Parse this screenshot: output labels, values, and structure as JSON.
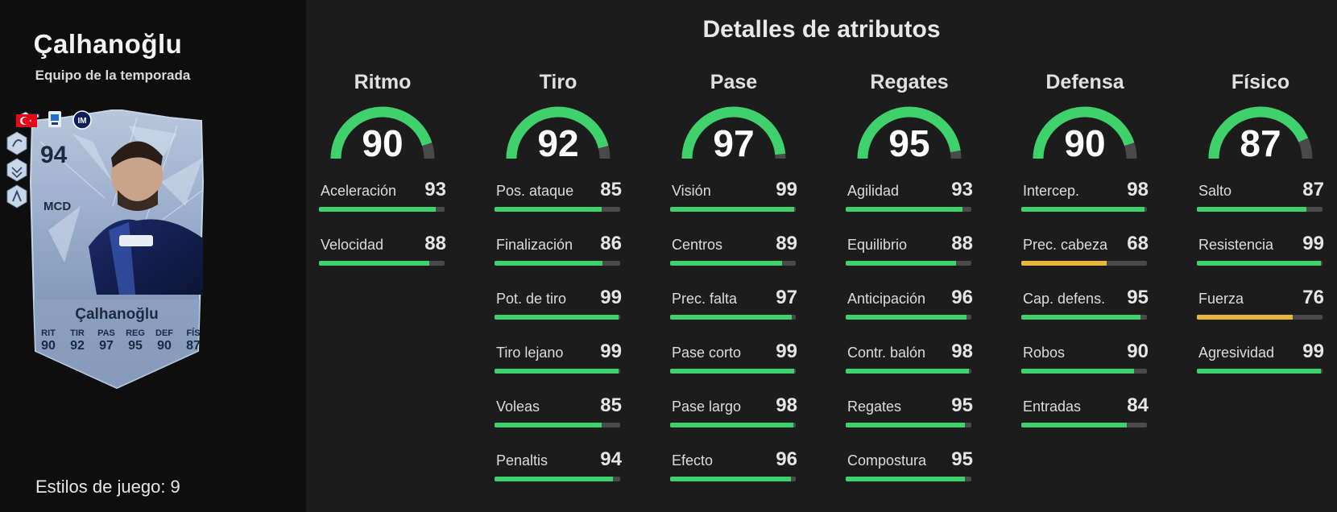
{
  "player": {
    "name": "Çalhanoğlu",
    "subtitle": "Equipo de la temporada",
    "playstyles": "Estilos de juego: 9"
  },
  "card": {
    "rating": "94",
    "position": "MCD",
    "name": "Çalhanoğlu",
    "stats": [
      {
        "label": "RIT",
        "value": "90"
      },
      {
        "label": "TIR",
        "value": "92"
      },
      {
        "label": "PAS",
        "value": "97"
      },
      {
        "label": "REG",
        "value": "95"
      },
      {
        "label": "DEF",
        "value": "90"
      },
      {
        "label": "FÍS",
        "value": "87"
      }
    ],
    "badges": [
      "turkey-flag-icon",
      "league-logo-icon",
      "club-crest-icon"
    ]
  },
  "section_title": "Detalles de atributos",
  "colors": {
    "high": "#3fd16b",
    "mid": "#e8b63c",
    "track": "#4a4a4a",
    "background": "#1b1c1b",
    "card": "#9fb2cf"
  },
  "categories": [
    {
      "title": "Ritmo",
      "value": "90",
      "attributes": [
        {
          "label": "Aceleración",
          "value": "93"
        },
        {
          "label": "Velocidad",
          "value": "88"
        }
      ]
    },
    {
      "title": "Tiro",
      "value": "92",
      "attributes": [
        {
          "label": "Pos. ataque",
          "value": "85"
        },
        {
          "label": "Finalización",
          "value": "86"
        },
        {
          "label": "Pot. de tiro",
          "value": "99"
        },
        {
          "label": "Tiro lejano",
          "value": "99"
        },
        {
          "label": "Voleas",
          "value": "85"
        },
        {
          "label": "Penaltis",
          "value": "94"
        }
      ]
    },
    {
      "title": "Pase",
      "value": "97",
      "attributes": [
        {
          "label": "Visión",
          "value": "99"
        },
        {
          "label": "Centros",
          "value": "89"
        },
        {
          "label": "Prec. falta",
          "value": "97"
        },
        {
          "label": "Pase corto",
          "value": "99"
        },
        {
          "label": "Pase largo",
          "value": "98"
        },
        {
          "label": "Efecto",
          "value": "96"
        }
      ]
    },
    {
      "title": "Regates",
      "value": "95",
      "attributes": [
        {
          "label": "Agilidad",
          "value": "93"
        },
        {
          "label": "Equilibrio",
          "value": "88"
        },
        {
          "label": "Anticipación",
          "value": "96"
        },
        {
          "label": "Contr. balón",
          "value": "98"
        },
        {
          "label": "Regates",
          "value": "95"
        },
        {
          "label": "Compostura",
          "value": "95"
        }
      ]
    },
    {
      "title": "Defensa",
      "value": "90",
      "attributes": [
        {
          "label": "Intercep.",
          "value": "98"
        },
        {
          "label": "Prec. cabeza",
          "value": "68"
        },
        {
          "label": "Cap. defens.",
          "value": "95"
        },
        {
          "label": "Robos",
          "value": "90"
        },
        {
          "label": "Entradas",
          "value": "84"
        }
      ]
    },
    {
      "title": "Físico",
      "value": "87",
      "attributes": [
        {
          "label": "Salto",
          "value": "87"
        },
        {
          "label": "Resistencia",
          "value": "99"
        },
        {
          "label": "Fuerza",
          "value": "76"
        },
        {
          "label": "Agresividad",
          "value": "99"
        }
      ]
    }
  ]
}
